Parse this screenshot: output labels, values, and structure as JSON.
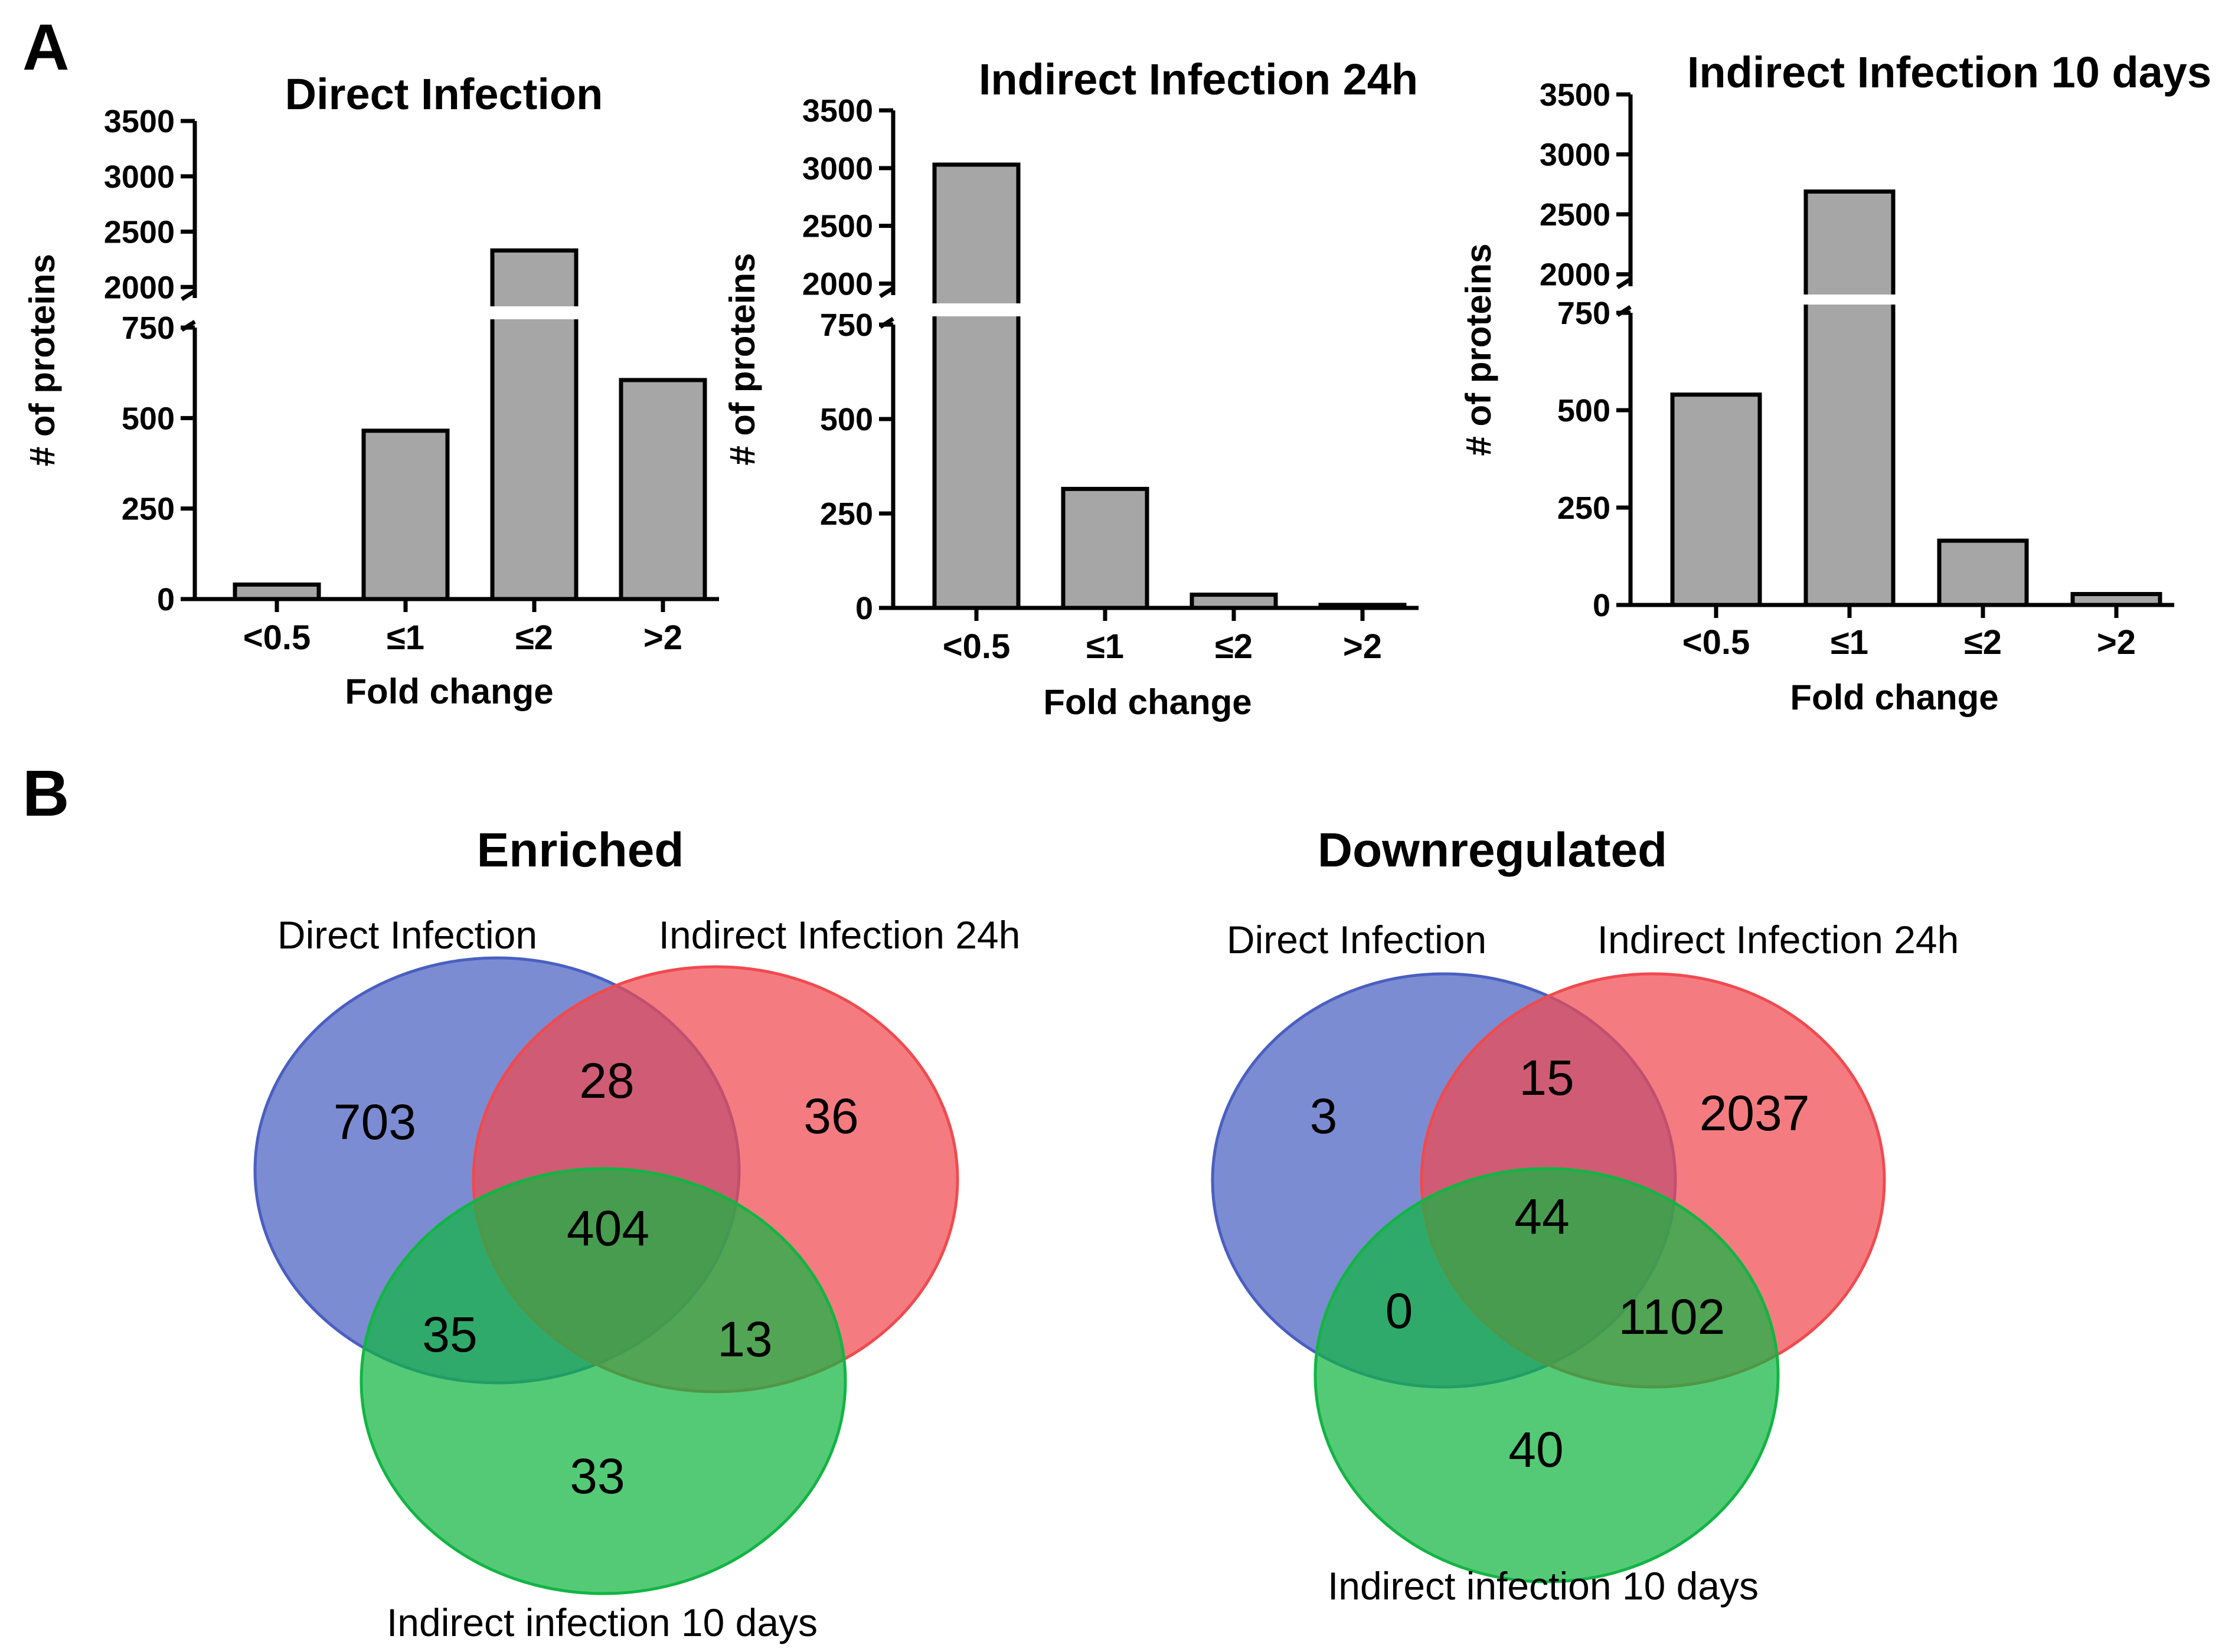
{
  "panel_labels": {
    "a": "A",
    "b": "B"
  },
  "chart_data": [
    {
      "type": "bar",
      "title": "Direct Infection",
      "xlabel": "Fold change",
      "ylabel": "# of proteins",
      "categories": [
        "<0.5",
        "≤1",
        "≤2",
        ">2"
      ],
      "values": [
        40,
        465,
        2330,
        605
      ],
      "broken_axis": {
        "lower_range": [
          0,
          750
        ],
        "upper_range": [
          1900,
          3500
        ]
      },
      "lower_ticks": [
        "0",
        "250",
        "500",
        "750"
      ],
      "upper_ticks": [
        "2000",
        "2500",
        "3000",
        "3500"
      ]
    },
    {
      "type": "bar",
      "title": "Indirect Infection 24h",
      "xlabel": "Fold change",
      "ylabel": "# of proteins",
      "categories": [
        "<0.5",
        "≤1",
        "≤2",
        ">2"
      ],
      "values": [
        3030,
        315,
        35,
        8
      ],
      "broken_axis": {
        "lower_range": [
          0,
          750
        ],
        "upper_range": [
          1900,
          3500
        ]
      },
      "lower_ticks": [
        "0",
        "250",
        "500",
        "750"
      ],
      "upper_ticks": [
        "2000",
        "2500",
        "3000",
        "3500"
      ]
    },
    {
      "type": "bar",
      "title": "Indirect Infection 10 days",
      "xlabel": "Fold change",
      "ylabel": "# of proteins",
      "categories": [
        "<0.5",
        "≤1",
        "≤2",
        ">2"
      ],
      "values": [
        540,
        2690,
        165,
        28
      ],
      "broken_axis": {
        "lower_range": [
          0,
          750
        ],
        "upper_range": [
          1900,
          3500
        ]
      },
      "lower_ticks": [
        "0",
        "250",
        "500",
        "750"
      ],
      "upper_ticks": [
        "2000",
        "2500",
        "3000",
        "3500"
      ]
    }
  ],
  "venn": [
    {
      "title": "Enriched",
      "set_labels": [
        "Direct Infection",
        "Indirect Infection 24h",
        "Indirect infection 10 days"
      ],
      "set_colors": [
        "#4a5fc1",
        "#f04a4f",
        "#12b543"
      ],
      "counts": {
        "a_only": "703",
        "b_only": "36",
        "c_only": "33",
        "ab": "28",
        "ac": "35",
        "bc": "13",
        "abc": "404"
      }
    },
    {
      "title": "Downregulated",
      "set_labels": [
        "Direct Infection",
        "Indirect Infection 24h",
        "Indirect infection 10 days"
      ],
      "set_colors": [
        "#4a5fc1",
        "#f04a4f",
        "#12b543"
      ],
      "counts": {
        "a_only": "3",
        "b_only": "2037",
        "c_only": "40",
        "ab": "15",
        "ac": "0",
        "bc": "1102",
        "abc": "44"
      }
    }
  ]
}
